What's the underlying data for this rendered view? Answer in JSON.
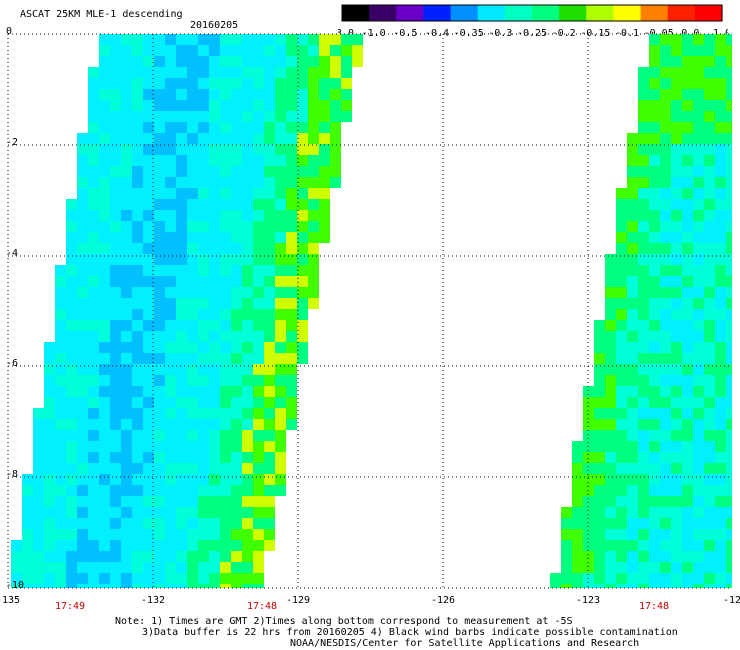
{
  "header": {
    "title": "ASCAT 25KM MLE-1 descending",
    "date": "20160205"
  },
  "colorbar": {
    "tick_labels": [
      "-3.0",
      "-1.0",
      "-0.5",
      "-0.4",
      "-0.35",
      "-0.3",
      "-0.25",
      "-0.2",
      "-0.15",
      "-0.1",
      "-0.05",
      "0.0",
      "1.0"
    ],
    "colors": [
      "#000000",
      "#3a0068",
      "#6a00c8",
      "#0020ff",
      "#0090ff",
      "#00e8ff",
      "#00ffc0",
      "#00ff80",
      "#20e000",
      "#b0ff00",
      "#ffff00",
      "#ff8000",
      "#ff2000",
      "#ff0000"
    ]
  },
  "map": {
    "lon_labels": [
      "-135",
      "-132",
      "-129",
      "-126",
      "-123",
      "-12"
    ],
    "lat_labels": [
      "0",
      "-2",
      "-4",
      "-6",
      "-8",
      "-10"
    ],
    "time_labels": [
      "17:49",
      "17:48",
      "17:48"
    ],
    "swath_colors": {
      "deep": "#00c0ff",
      "mid": "#00f0ff",
      "light": "#00ffd8",
      "green": "#00ff80",
      "lime": "#40ff00",
      "yellow": "#d0ff00"
    }
  },
  "notes": {
    "line1": "Note: 1) Times are GMT 2)Times along bottom correspond to measurement at -5S",
    "line2": "3)Data buffer is 22 hrs from 20160205 4) Black wind barbs indicate possible contamination",
    "line3": "NOAA/NESDIS/Center for Satellite Applications and Research"
  }
}
